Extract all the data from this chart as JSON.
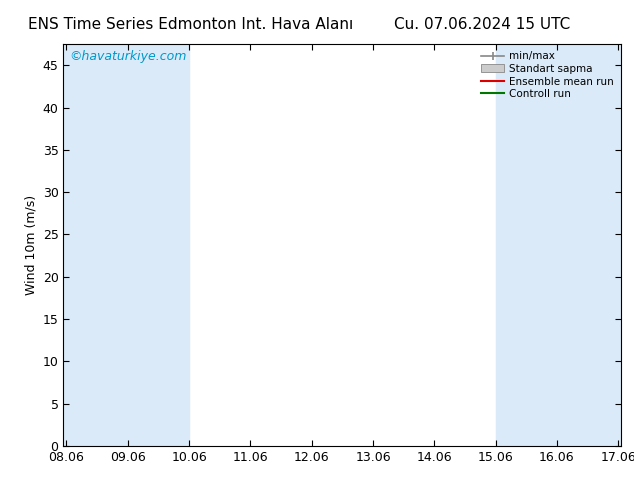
{
  "title_left": "ENS Time Series Edmonton Int. Hava Alanı",
  "title_right": "Cu. 07.06.2024 15 UTC",
  "ylabel": "Wind 10m (m/s)",
  "watermark": "©havaturkiye.com",
  "watermark_color": "#0099cc",
  "ylim": [
    0,
    47.5
  ],
  "yticks": [
    0,
    5,
    10,
    15,
    20,
    25,
    30,
    35,
    40,
    45
  ],
  "xtick_labels": [
    "08.06",
    "09.06",
    "10.06",
    "11.06",
    "12.06",
    "13.06",
    "14.06",
    "15.06",
    "16.06",
    "17.06"
  ],
  "xtick_positions": [
    0,
    1,
    2,
    3,
    4,
    5,
    6,
    7,
    8,
    9
  ],
  "shaded_bands": [
    [
      0.0,
      0.5
    ],
    [
      1.0,
      2.0
    ],
    [
      7.0,
      8.0
    ],
    [
      8.5,
      9.5
    ]
  ],
  "band_color": "#daeaf8",
  "background_color": "#ffffff",
  "legend_labels": [
    "min/max",
    "Standart sapma",
    "Ensemble mean run",
    "Controll run"
  ],
  "title_fontsize": 11,
  "axis_fontsize": 9,
  "tick_fontsize": 9,
  "watermark_fontsize": 9
}
